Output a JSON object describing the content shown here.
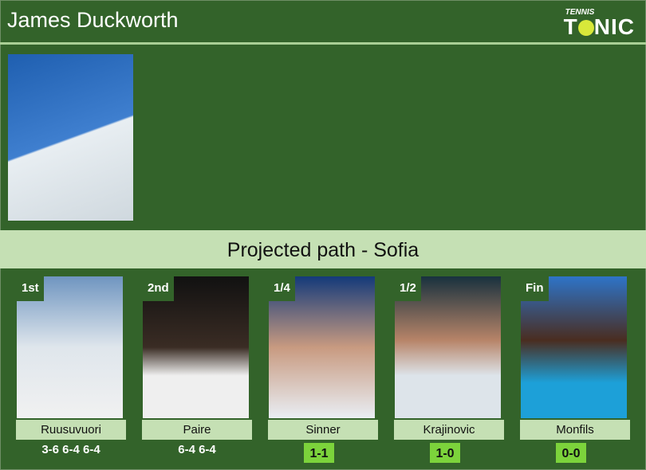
{
  "header": {
    "title": "James Duckworth",
    "logo_small": "TENNIS",
    "logo_big_1": "T",
    "logo_big_2": "NIC"
  },
  "band": {
    "title": "Projected path - Sofia"
  },
  "path": [
    {
      "round": "1st",
      "name": "Ruusuvuori",
      "score": "3-6 6-4 6-4",
      "photo_bg": "linear-gradient(#6f95c0,#dfe6ec 50%,#f1f1f1)"
    },
    {
      "round": "2nd",
      "name": "Paire",
      "score": "6-4 6-4",
      "photo_bg": "linear-gradient(#111,#3a2c24 50%,#efefef 70%)"
    },
    {
      "round": "1/4",
      "name": "Sinner",
      "h2h": "1-1",
      "photo_bg": "linear-gradient(#143a7a,#c89a80 50%,#e9eef4)"
    },
    {
      "round": "1/2",
      "name": "Krajinovic",
      "h2h": "1-0",
      "photo_bg": "linear-gradient(#18313e,#b78468 45%,#dde4ea 70%)"
    },
    {
      "round": "Fin",
      "name": "Monfils",
      "h2h": "0-0",
      "photo_bg": "linear-gradient(#2e74c8,#4a2d20 45%,#1da0d8 75%)"
    }
  ]
}
